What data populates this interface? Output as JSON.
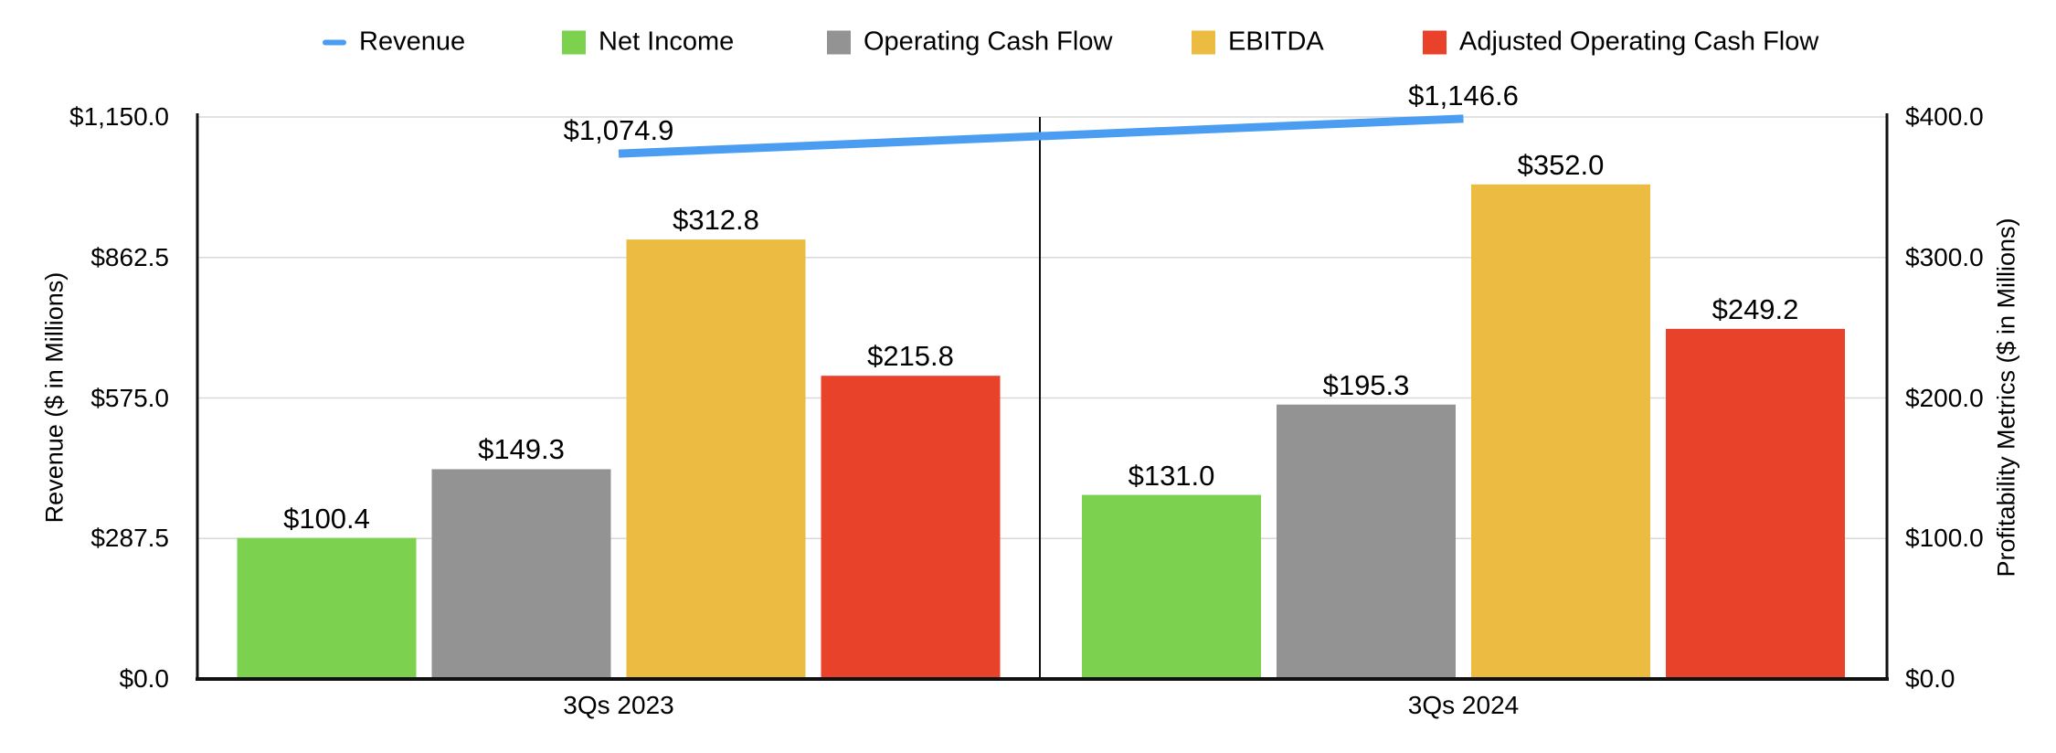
{
  "chart_data": {
    "type": "combo_bar_line",
    "categories": [
      "3Qs 2023",
      "3Qs 2024"
    ],
    "line_series": {
      "name": "Revenue",
      "axis": "left",
      "color": "#4B9DF2",
      "values": [
        1074.9,
        1146.6
      ],
      "labels": [
        "$1,074.9",
        "$1,146.6"
      ]
    },
    "bar_series": [
      {
        "name": "Net Income",
        "color": "#7CD14F",
        "values": [
          100.4,
          131.0
        ],
        "labels": [
          "$100.4",
          "$131.0"
        ]
      },
      {
        "name": "Operating Cash Flow",
        "color": "#939393",
        "values": [
          149.3,
          195.3
        ],
        "labels": [
          "$149.3",
          "$195.3"
        ]
      },
      {
        "name": "EBITDA",
        "color": "#EBBC41",
        "values": [
          312.8,
          352.0
        ],
        "labels": [
          "$312.8",
          "$352.0"
        ]
      },
      {
        "name": "Adjusted Operating Cash Flow",
        "color": "#E8422A",
        "values": [
          215.8,
          249.2
        ],
        "labels": [
          "$215.8",
          "$249.2"
        ]
      }
    ],
    "left_axis": {
      "title": "Revenue ($ in Millions)",
      "min": 0,
      "max": 1150,
      "ticks": [
        "$1,150.0",
        "$862.5",
        "$575.0",
        "$287.5",
        "$0.0"
      ]
    },
    "right_axis": {
      "title": "Profitability Metrics ($ in Millions)",
      "min": 0,
      "max": 400,
      "ticks": [
        "$400.0",
        "$300.0",
        "$200.0",
        "$100.0",
        "$0.0"
      ]
    },
    "legend": [
      {
        "label": "Revenue",
        "type": "line",
        "color": "#4B9DF2"
      },
      {
        "label": "Net Income",
        "type": "square",
        "color": "#7CD14F"
      },
      {
        "label": "Operating Cash Flow",
        "type": "square",
        "color": "#939393"
      },
      {
        "label": "EBITDA",
        "type": "square",
        "color": "#EBBC41"
      },
      {
        "label": "Adjusted Operating Cash Flow",
        "type": "square",
        "color": "#E8422A"
      }
    ],
    "grid": {
      "on": true,
      "color": "#D9D9D9"
    },
    "axis_color": "#111111",
    "legend_position": "top"
  }
}
